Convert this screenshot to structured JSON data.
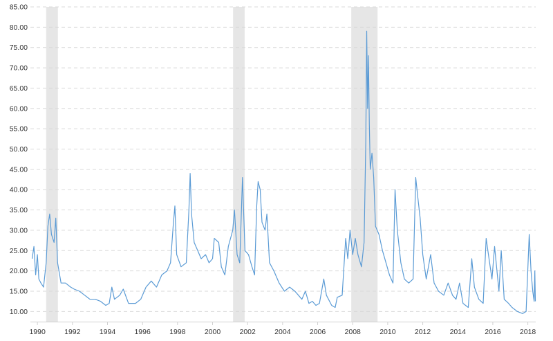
{
  "chart_data": {
    "type": "line",
    "title": "",
    "xlabel": "",
    "ylabel": "",
    "xlim": [
      1989.6,
      2018.45
    ],
    "ylim": [
      7.5,
      85
    ],
    "grid": true,
    "colors": {
      "series": "#5b9bd5",
      "recession": "#e6e6e6",
      "grid": "#d9d9d9",
      "text": "#333333"
    },
    "y_ticks": [
      "10.00",
      "15.00",
      "20.00",
      "25.00",
      "30.00",
      "35.00",
      "40.00",
      "45.00",
      "50.00",
      "55.00",
      "60.00",
      "65.00",
      "70.00",
      "75.00",
      "80.00",
      "85.00"
    ],
    "x_ticks": [
      "1990",
      "1992",
      "1994",
      "1996",
      "1998",
      "2000",
      "2002",
      "2004",
      "2006",
      "2008",
      "2010",
      "2012",
      "2014",
      "2016",
      "2018"
    ],
    "recessions": [
      {
        "start": 1990.5,
        "end": 1991.17
      },
      {
        "start": 2001.17,
        "end": 2001.83
      },
      {
        "start": 2007.92,
        "end": 2009.42
      }
    ],
    "series": [
      {
        "values": [
          [
            1989.7,
            23.0
          ],
          [
            1989.8,
            26.0
          ],
          [
            1989.9,
            19.0
          ],
          [
            1990.0,
            24.0
          ],
          [
            1990.08,
            18.0
          ],
          [
            1990.2,
            17.0
          ],
          [
            1990.35,
            16.0
          ],
          [
            1990.5,
            22.0
          ],
          [
            1990.6,
            31.0
          ],
          [
            1990.7,
            34.0
          ],
          [
            1990.8,
            29.0
          ],
          [
            1990.95,
            27.0
          ],
          [
            1991.05,
            33.0
          ],
          [
            1991.15,
            22.0
          ],
          [
            1991.35,
            17.0
          ],
          [
            1991.6,
            17.0
          ],
          [
            1991.9,
            16.0
          ],
          [
            1992.1,
            15.5
          ],
          [
            1992.4,
            15.0
          ],
          [
            1992.7,
            14.0
          ],
          [
            1993.0,
            13.0
          ],
          [
            1993.3,
            13.0
          ],
          [
            1993.6,
            12.5
          ],
          [
            1993.9,
            11.5
          ],
          [
            1994.1,
            12.0
          ],
          [
            1994.25,
            16.0
          ],
          [
            1994.4,
            13.0
          ],
          [
            1994.7,
            14.0
          ],
          [
            1994.9,
            15.5
          ],
          [
            1995.2,
            12.0
          ],
          [
            1995.6,
            12.0
          ],
          [
            1995.9,
            13.0
          ],
          [
            1996.2,
            16.0
          ],
          [
            1996.5,
            17.5
          ],
          [
            1996.8,
            16.0
          ],
          [
            1997.1,
            19.0
          ],
          [
            1997.4,
            20.0
          ],
          [
            1997.6,
            22.0
          ],
          [
            1997.75,
            31.0
          ],
          [
            1997.85,
            36.0
          ],
          [
            1997.95,
            24.0
          ],
          [
            1998.2,
            21.0
          ],
          [
            1998.5,
            22.0
          ],
          [
            1998.65,
            35.0
          ],
          [
            1998.72,
            44.0
          ],
          [
            1998.8,
            34.0
          ],
          [
            1998.95,
            27.0
          ],
          [
            1999.15,
            25.0
          ],
          [
            1999.35,
            23.0
          ],
          [
            1999.6,
            24.0
          ],
          [
            1999.8,
            22.0
          ],
          [
            2000.0,
            23.0
          ],
          [
            2000.1,
            28.0
          ],
          [
            2000.35,
            27.0
          ],
          [
            2000.5,
            21.0
          ],
          [
            2000.7,
            19.0
          ],
          [
            2000.9,
            26.0
          ],
          [
            2001.15,
            30.0
          ],
          [
            2001.25,
            35.0
          ],
          [
            2001.4,
            24.0
          ],
          [
            2001.55,
            22.0
          ],
          [
            2001.71,
            43.0
          ],
          [
            2001.85,
            25.0
          ],
          [
            2002.05,
            24.0
          ],
          [
            2002.25,
            21.0
          ],
          [
            2002.4,
            19.0
          ],
          [
            2002.52,
            36.0
          ],
          [
            2002.6,
            42.0
          ],
          [
            2002.72,
            40.0
          ],
          [
            2002.82,
            32.0
          ],
          [
            2003.0,
            30.0
          ],
          [
            2003.1,
            34.0
          ],
          [
            2003.25,
            22.0
          ],
          [
            2003.5,
            20.0
          ],
          [
            2003.8,
            17.0
          ],
          [
            2004.1,
            15.0
          ],
          [
            2004.4,
            16.0
          ],
          [
            2004.7,
            15.0
          ],
          [
            2004.9,
            14.0
          ],
          [
            2005.1,
            13.0
          ],
          [
            2005.3,
            15.0
          ],
          [
            2005.5,
            12.0
          ],
          [
            2005.7,
            12.5
          ],
          [
            2005.9,
            11.5
          ],
          [
            2006.1,
            12.0
          ],
          [
            2006.35,
            18.0
          ],
          [
            2006.5,
            14.0
          ],
          [
            2006.8,
            11.5
          ],
          [
            2007.0,
            11.0
          ],
          [
            2007.12,
            13.5
          ],
          [
            2007.4,
            14.0
          ],
          [
            2007.6,
            28.0
          ],
          [
            2007.72,
            23.0
          ],
          [
            2007.85,
            30.0
          ],
          [
            2008.0,
            24.0
          ],
          [
            2008.15,
            28.0
          ],
          [
            2008.3,
            24.0
          ],
          [
            2008.5,
            21.0
          ],
          [
            2008.65,
            27.0
          ],
          [
            2008.75,
            52.0
          ],
          [
            2008.8,
            79.0
          ],
          [
            2008.85,
            60.0
          ],
          [
            2008.9,
            73.0
          ],
          [
            2008.95,
            56.0
          ],
          [
            2009.0,
            45.0
          ],
          [
            2009.1,
            49.0
          ],
          [
            2009.2,
            43.0
          ],
          [
            2009.3,
            31.0
          ],
          [
            2009.5,
            29.0
          ],
          [
            2009.7,
            25.0
          ],
          [
            2009.9,
            22.0
          ],
          [
            2010.1,
            19.0
          ],
          [
            2010.3,
            17.0
          ],
          [
            2010.42,
            40.0
          ],
          [
            2010.55,
            30.0
          ],
          [
            2010.75,
            22.0
          ],
          [
            2010.95,
            18.0
          ],
          [
            2011.2,
            17.0
          ],
          [
            2011.45,
            18.0
          ],
          [
            2011.6,
            43.0
          ],
          [
            2011.72,
            38.0
          ],
          [
            2011.85,
            33.0
          ],
          [
            2012.0,
            24.0
          ],
          [
            2012.2,
            18.0
          ],
          [
            2012.45,
            24.0
          ],
          [
            2012.65,
            17.0
          ],
          [
            2012.9,
            15.0
          ],
          [
            2013.2,
            14.0
          ],
          [
            2013.45,
            17.0
          ],
          [
            2013.7,
            14.0
          ],
          [
            2013.9,
            13.0
          ],
          [
            2014.1,
            17.0
          ],
          [
            2014.3,
            12.0
          ],
          [
            2014.6,
            11.0
          ],
          [
            2014.8,
            23.0
          ],
          [
            2014.95,
            16.0
          ],
          [
            2015.2,
            13.0
          ],
          [
            2015.45,
            12.0
          ],
          [
            2015.62,
            28.0
          ],
          [
            2015.75,
            24.0
          ],
          [
            2015.95,
            18.0
          ],
          [
            2016.1,
            26.0
          ],
          [
            2016.35,
            15.0
          ],
          [
            2016.48,
            25.0
          ],
          [
            2016.65,
            13.0
          ],
          [
            2016.9,
            12.0
          ],
          [
            2017.1,
            11.0
          ],
          [
            2017.4,
            10.0
          ],
          [
            2017.7,
            9.5
          ],
          [
            2017.9,
            10.0
          ],
          [
            2018.08,
            29.0
          ],
          [
            2018.18,
            20.0
          ],
          [
            2018.28,
            15.0
          ],
          [
            2018.36,
            12.5
          ],
          [
            2018.4,
            20.0
          ],
          [
            2018.43,
            12.5
          ]
        ]
      }
    ]
  }
}
